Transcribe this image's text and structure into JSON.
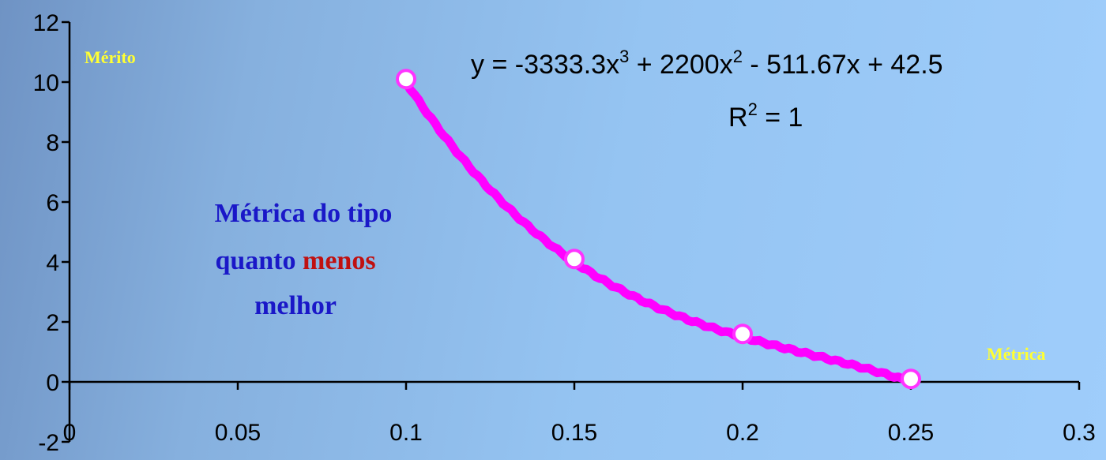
{
  "chart_data": {
    "type": "scatter",
    "xlim": [
      0,
      0.3
    ],
    "ylim": [
      -2,
      12
    ],
    "x_ticks": [
      "0",
      "0.05",
      "0.1",
      "0.15",
      "0.2",
      "0.25",
      "0.3"
    ],
    "y_ticks": [
      "-2",
      "0",
      "2",
      "4",
      "6",
      "8",
      "10",
      "12"
    ],
    "ylabel": "Mérito",
    "xlabel": "Métrica",
    "grid": false,
    "series": [
      {
        "points": [
          {
            "x": 0.1,
            "y": 10.1
          },
          {
            "x": 0.15,
            "y": 4.1
          },
          {
            "x": 0.2,
            "y": 1.6
          },
          {
            "x": 0.25,
            "y": 0.1
          }
        ],
        "color": "#ff33ff",
        "marker_fill": "#ffffff"
      }
    ],
    "trendline": {
      "kind": "polynomial",
      "coefficients": [
        -3333.3,
        2200,
        -511.67,
        42.5
      ],
      "color": "#ff00ff",
      "equation": {
        "prefix": "y = -3333.3x",
        "exp1": "3",
        "mid1": " + 2200x",
        "exp2": "2",
        "tail": " - 511.67x + 42.5"
      },
      "r2": {
        "base": "R",
        "exp": "2",
        "tail": " = 1"
      }
    },
    "annotation": {
      "line1": "Métrica do tipo",
      "line2_a": "quanto ",
      "line2_b": "menos",
      "line3": "melhor"
    }
  }
}
